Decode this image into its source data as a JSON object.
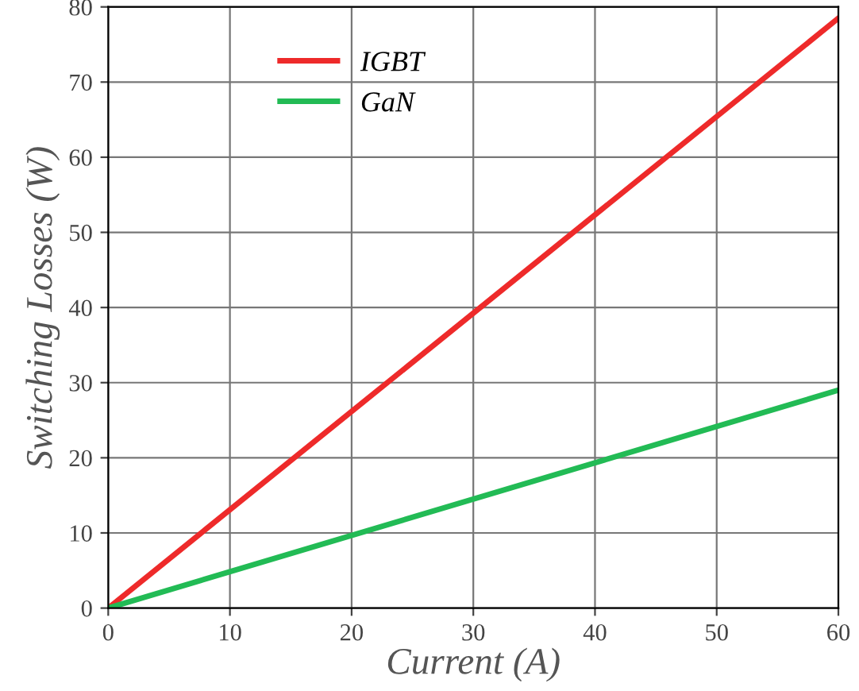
{
  "chart_data": {
    "type": "line",
    "xlabel": "Current (A)",
    "ylabel": "Switching Losses (W)",
    "x": [
      0,
      60
    ],
    "series": [
      {
        "name": "IGBT",
        "color": "#ee2a2a",
        "values": [
          0,
          78.5
        ]
      },
      {
        "name": "GaN",
        "color": "#22bb55",
        "values": [
          0,
          29
        ]
      }
    ],
    "xlim": [
      0,
      60
    ],
    "xticks": [
      0,
      10,
      20,
      30,
      40,
      50,
      60
    ],
    "ylim": [
      0,
      80
    ],
    "yticks": [
      0,
      10,
      20,
      30,
      40,
      50,
      60,
      70,
      80
    ],
    "grid": true,
    "legend": "top left",
    "marker": "none",
    "line_style": "solid"
  }
}
